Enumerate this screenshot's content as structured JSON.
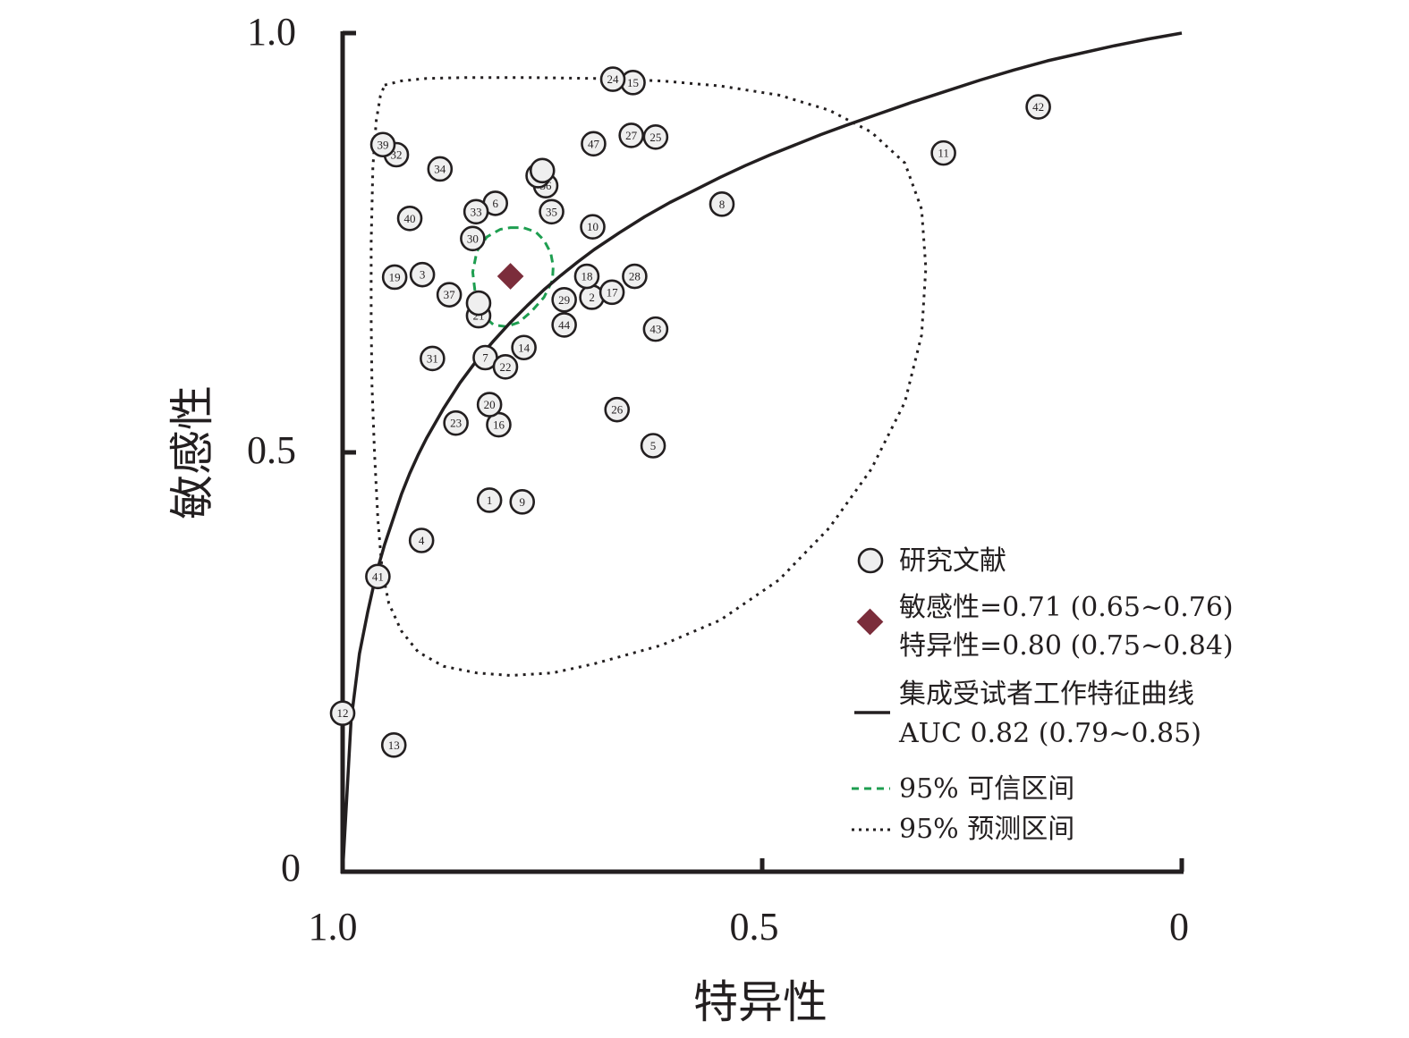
{
  "chart_data": {
    "type": "scatter",
    "title": "",
    "xlabel": "特异性",
    "ylabel": "敏感性",
    "x_axis_reversed": true,
    "xlim": [
      1.0,
      0
    ],
    "ylim": [
      0,
      1.0
    ],
    "x_ticks": [
      "1.0",
      "0.5",
      "0"
    ],
    "y_ticks": [
      "1.0",
      "0.5",
      "0"
    ],
    "y_origin_label": "0",
    "grid": false,
    "legend_position": "bottom-right",
    "colors": {
      "axis": "#231f20",
      "study_fill": "#efefef",
      "summary_point": "#7b2d3b",
      "credible_region": "#1e9e50",
      "prediction_region": "#231f20"
    },
    "studies": [
      {
        "id": "1",
        "specificity": 0.825,
        "sensitivity": 0.443
      },
      {
        "id": "2",
        "specificity": 0.703,
        "sensitivity": 0.685
      },
      {
        "id": "3",
        "specificity": 0.905,
        "sensitivity": 0.712
      },
      {
        "id": "4",
        "specificity": 0.906,
        "sensitivity": 0.395
      },
      {
        "id": "5",
        "specificity": 0.63,
        "sensitivity": 0.508
      },
      {
        "id": "6",
        "specificity": 0.818,
        "sensitivity": 0.797
      },
      {
        "id": "7",
        "specificity": 0.83,
        "sensitivity": 0.613
      },
      {
        "id": "8",
        "specificity": 0.548,
        "sensitivity": 0.796
      },
      {
        "id": "9",
        "specificity": 0.786,
        "sensitivity": 0.441
      },
      {
        "id": "10",
        "specificity": 0.702,
        "sensitivity": 0.769
      },
      {
        "id": "11",
        "specificity": 0.284,
        "sensitivity": 0.857
      },
      {
        "id": "12",
        "specificity": 1.0,
        "sensitivity": 0.189
      },
      {
        "id": "13",
        "specificity": 0.939,
        "sensitivity": 0.151
      },
      {
        "id": "14",
        "specificity": 0.784,
        "sensitivity": 0.625
      },
      {
        "id": "15",
        "specificity": 0.654,
        "sensitivity": 0.941
      },
      {
        "id": "16",
        "specificity": 0.814,
        "sensitivity": 0.533
      },
      {
        "id": "17",
        "specificity": 0.679,
        "sensitivity": 0.691
      },
      {
        "id": "18",
        "specificity": 0.709,
        "sensitivity": 0.71
      },
      {
        "id": "19",
        "specificity": 0.938,
        "sensitivity": 0.709
      },
      {
        "id": "20",
        "specificity": 0.825,
        "sensitivity": 0.557
      },
      {
        "id": "21",
        "specificity": 0.838,
        "sensitivity": 0.663
      },
      {
        "id": "22",
        "specificity": 0.806,
        "sensitivity": 0.602
      },
      {
        "id": "23",
        "specificity": 0.865,
        "sensitivity": 0.535
      },
      {
        "id": "24",
        "specificity": 0.678,
        "sensitivity": 0.945
      },
      {
        "id": "25",
        "specificity": 0.627,
        "sensitivity": 0.876
      },
      {
        "id": "26",
        "specificity": 0.673,
        "sensitivity": 0.551
      },
      {
        "id": "27",
        "specificity": 0.656,
        "sensitivity": 0.878
      },
      {
        "id": "28",
        "specificity": 0.652,
        "sensitivity": 0.71
      },
      {
        "id": "29",
        "specificity": 0.736,
        "sensitivity": 0.682
      },
      {
        "id": "30",
        "specificity": 0.845,
        "sensitivity": 0.755
      },
      {
        "id": "31",
        "specificity": 0.893,
        "sensitivity": 0.612
      },
      {
        "id": "32",
        "specificity": 0.936,
        "sensitivity": 0.855
      },
      {
        "id": "33",
        "specificity": 0.841,
        "sensitivity": 0.787
      },
      {
        "id": "34",
        "specificity": 0.884,
        "sensitivity": 0.838
      },
      {
        "id": "35",
        "specificity": 0.751,
        "sensitivity": 0.787
      },
      {
        "id": "36",
        "specificity": 0.758,
        "sensitivity": 0.818
      },
      {
        "id": "37",
        "specificity": 0.873,
        "sensitivity": 0.688
      },
      {
        "id": "39",
        "specificity": 0.952,
        "sensitivity": 0.867
      },
      {
        "id": "40",
        "specificity": 0.92,
        "sensitivity": 0.779
      },
      {
        "id": "41",
        "specificity": 0.958,
        "sensitivity": 0.352
      },
      {
        "id": "42",
        "specificity": 0.171,
        "sensitivity": 0.912
      },
      {
        "id": "43",
        "specificity": 0.627,
        "sensitivity": 0.647
      },
      {
        "id": "44",
        "specificity": 0.736,
        "sensitivity": 0.652
      },
      {
        "id": "45",
        "specificity": 0.767,
        "sensitivity": 0.83
      },
      {
        "id": "47",
        "specificity": 0.701,
        "sensitivity": 0.868
      },
      {
        "id": "",
        "specificity": 0.762,
        "sensitivity": 0.836
      },
      {
        "id": "",
        "specificity": 0.838,
        "sensitivity": 0.678
      }
    ],
    "summary_point": {
      "specificity": 0.8,
      "sensitivity": 0.71
    },
    "credible_region": {
      "specificity": [
        0.8,
        0.785,
        0.77,
        0.76,
        0.752,
        0.749,
        0.75,
        0.76,
        0.775,
        0.79,
        0.805,
        0.82,
        0.835,
        0.842,
        0.845,
        0.84,
        0.828,
        0.812,
        0.8
      ],
      "sensitivity": [
        0.768,
        0.768,
        0.763,
        0.753,
        0.738,
        0.722,
        0.705,
        0.685,
        0.668,
        0.655,
        0.65,
        0.652,
        0.665,
        0.69,
        0.715,
        0.74,
        0.757,
        0.766,
        0.768
      ]
    },
    "prediction_region": {
      "specificity": [
        0.95,
        0.93,
        0.9,
        0.85,
        0.78,
        0.7,
        0.62,
        0.55,
        0.48,
        0.42,
        0.37,
        0.33,
        0.31,
        0.305,
        0.31,
        0.33,
        0.37,
        0.42,
        0.48,
        0.55,
        0.62,
        0.7,
        0.75,
        0.8,
        0.84,
        0.88,
        0.91,
        0.93,
        0.945,
        0.953,
        0.958,
        0.962,
        0.965,
        0.966,
        0.966,
        0.964,
        0.96,
        0.955,
        0.95
      ],
      "sensitivity": [
        0.938,
        0.943,
        0.946,
        0.947,
        0.947,
        0.946,
        0.943,
        0.937,
        0.926,
        0.908,
        0.882,
        0.845,
        0.79,
        0.72,
        0.64,
        0.56,
        0.48,
        0.41,
        0.348,
        0.3,
        0.27,
        0.248,
        0.237,
        0.234,
        0.237,
        0.245,
        0.262,
        0.287,
        0.32,
        0.36,
        0.42,
        0.5,
        0.58,
        0.66,
        0.75,
        0.84,
        0.895,
        0.925,
        0.938
      ]
    },
    "sroc_curve": {
      "specificity": [
        1.0,
        0.99,
        0.98,
        0.97,
        0.96,
        0.95,
        0.94,
        0.93,
        0.92,
        0.91,
        0.9,
        0.88,
        0.86,
        0.84,
        0.82,
        0.8,
        0.78,
        0.76,
        0.74,
        0.72,
        0.7,
        0.67,
        0.64,
        0.61,
        0.58,
        0.55,
        0.52,
        0.49,
        0.46,
        0.43,
        0.4,
        0.36,
        0.32,
        0.28,
        0.24,
        0.2,
        0.16,
        0.12,
        0.08,
        0.04,
        0.0
      ],
      "sensitivity": [
        0.0,
        0.18,
        0.26,
        0.31,
        0.355,
        0.39,
        0.42,
        0.45,
        0.475,
        0.497,
        0.517,
        0.552,
        0.583,
        0.61,
        0.633,
        0.655,
        0.675,
        0.694,
        0.711,
        0.727,
        0.742,
        0.762,
        0.781,
        0.798,
        0.813,
        0.828,
        0.842,
        0.855,
        0.867,
        0.879,
        0.89,
        0.904,
        0.918,
        0.931,
        0.944,
        0.956,
        0.967,
        0.976,
        0.985,
        0.993,
        1.0
      ]
    }
  },
  "legend": {
    "studies_label": "研究文献",
    "summary_line1": "敏感性=0.71 (0.65~0.76)",
    "summary_line2": "特异性=0.80 (0.75~0.84)",
    "sroc_line1": "集成受试者工作特征曲线",
    "sroc_line2": "AUC 0.82 (0.79~0.85)",
    "credible_label": "95% 可信区间",
    "prediction_label": "95% 预测区间"
  }
}
